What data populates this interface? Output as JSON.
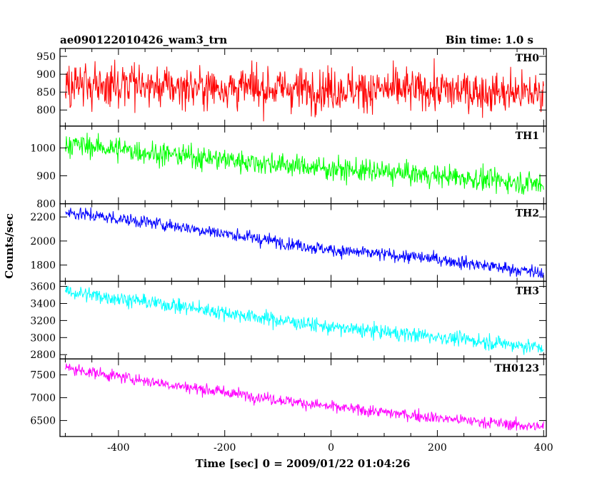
{
  "header": {
    "title": "ae090122010426_wam3_trn",
    "bin_time": "Bin time: 1.0 s"
  },
  "chart_data": {
    "type": "line",
    "title": "ae090122010426_wam3_trn",
    "xlabel": "Time [sec] 0 = 2009/01/22 01:04:26",
    "ylabel": "Counts/sec",
    "xlim": [
      -510,
      405
    ],
    "x_ticks": [
      -400,
      -200,
      0,
      200,
      400
    ],
    "x_range": [
      -500,
      400
    ],
    "bin_seconds": 1.0,
    "panels": [
      {
        "name": "TH0",
        "color": "#ff0000",
        "ylim": [
          755,
          972
        ],
        "y_ticks": [
          800,
          850,
          900,
          950
        ],
        "trend": [
          [
            -500,
            870
          ],
          [
            -300,
            865
          ],
          [
            0,
            858
          ],
          [
            200,
            855
          ],
          [
            400,
            845
          ]
        ],
        "noise_sd": 42
      },
      {
        "name": "TH1",
        "color": "#00ff00",
        "ylim": [
          800,
          1078
        ],
        "y_ticks": [
          800,
          900,
          1000
        ],
        "trend": [
          [
            -500,
            1015
          ],
          [
            -300,
            975
          ],
          [
            0,
            925
          ],
          [
            200,
            900
          ],
          [
            400,
            870
          ]
        ],
        "noise_sd": 28
      },
      {
        "name": "TH2",
        "color": "#0000ff",
        "ylim": [
          1665,
          2310
        ],
        "y_ticks": [
          1800,
          2000,
          2200
        ],
        "trend": [
          [
            -500,
            2240
          ],
          [
            -300,
            2130
          ],
          [
            0,
            1925
          ],
          [
            200,
            1850
          ],
          [
            400,
            1730
          ]
        ],
        "noise_sd": 38
      },
      {
        "name": "TH3",
        "color": "#00ffff",
        "ylim": [
          2750,
          3660
        ],
        "y_ticks": [
          2800,
          3000,
          3200,
          3400,
          3600
        ],
        "trend": [
          [
            -500,
            3540
          ],
          [
            -300,
            3380
          ],
          [
            0,
            3120
          ],
          [
            200,
            3010
          ],
          [
            400,
            2880
          ]
        ],
        "noise_sd": 60
      },
      {
        "name": "TH0123",
        "color": "#ff00ff",
        "ylim": [
          6150,
          7850
        ],
        "y_ticks": [
          6500,
          7000,
          7500
        ],
        "trend": [
          [
            -500,
            7650
          ],
          [
            -300,
            7280
          ],
          [
            0,
            6800
          ],
          [
            200,
            6560
          ],
          [
            400,
            6350
          ]
        ],
        "noise_sd": 90
      }
    ]
  }
}
